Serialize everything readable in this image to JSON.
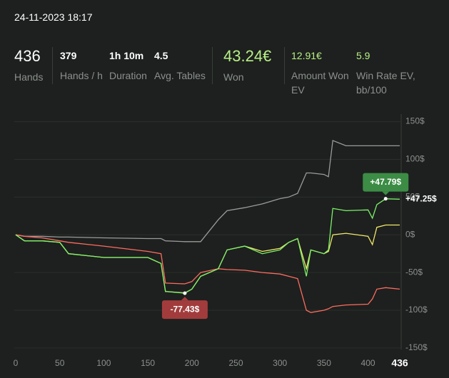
{
  "header": {
    "datetime": "24-11-2023 18:17"
  },
  "stats": [
    {
      "value": "436",
      "label": "Hands"
    },
    {
      "value": "379",
      "label": "Hands / h"
    },
    {
      "value": "1h 10m",
      "label": "Duration"
    },
    {
      "value": "4.5",
      "label": "Avg. Tables"
    },
    {
      "value": "43.24€",
      "label": "Won"
    },
    {
      "value": "12.91€",
      "label": "Amount Won EV"
    },
    {
      "value": "5.9",
      "label": "Win Rate EV, bb/100"
    }
  ],
  "chart_data": {
    "type": "line",
    "x": [
      0,
      10,
      30,
      50,
      60,
      100,
      150,
      165,
      170,
      192,
      200,
      210,
      230,
      240,
      260,
      280,
      300,
      310,
      320,
      330,
      335,
      350,
      355,
      360,
      375,
      400,
      405,
      410,
      420,
      436
    ],
    "series": [
      {
        "color": "#9a9a9a",
        "values": [
          0,
          -2,
          -2,
          -3,
          -3,
          -4,
          -5,
          -5,
          -8,
          -9,
          -9,
          -9,
          20,
          32,
          36,
          41,
          48,
          50,
          55,
          82,
          82,
          80,
          77,
          125,
          118,
          118,
          118,
          118,
          118,
          118
        ]
      },
      {
        "color": "#ff6b60",
        "values": [
          0,
          -2,
          -4,
          -8,
          -10,
          -15,
          -22,
          -25,
          -64,
          -65,
          -62,
          -50,
          -45,
          -46,
          -47,
          -50,
          -52,
          -55,
          -58,
          -100,
          -103,
          -100,
          -98,
          -95,
          -93,
          -92,
          -85,
          -72,
          -70,
          -72
        ]
      },
      {
        "color": "#f2e86a",
        "values": [
          0,
          -8,
          -8,
          -10,
          -25,
          -30,
          -30,
          -38,
          -75,
          -77,
          -72,
          -55,
          -45,
          -20,
          -15,
          -22,
          -18,
          -10,
          -5,
          -45,
          -20,
          -25,
          -22,
          0,
          2,
          -2,
          -13,
          10,
          13,
          13
        ]
      },
      {
        "color": "#7cf06a",
        "values": [
          0,
          -8,
          -8,
          -10,
          -25,
          -30,
          -30,
          -38,
          -75,
          -77.43,
          -72,
          -55,
          -45,
          -20,
          -15,
          -25,
          -20,
          -10,
          -5,
          -55,
          -20,
          -25,
          -20,
          35,
          32,
          33,
          22,
          40,
          47.79,
          47.25
        ]
      }
    ],
    "xlim": [
      0,
      436
    ],
    "ylim": [
      -152,
      160
    ],
    "xticks": [
      0,
      50,
      100,
      150,
      200,
      250,
      300,
      350,
      400,
      436
    ],
    "yticks": [
      {
        "value": 150,
        "label": "150$"
      },
      {
        "value": 100,
        "label": "100$"
      },
      {
        "value": 50,
        "label": "50$"
      },
      {
        "value": 0,
        "label": "0$"
      },
      {
        "value": -50,
        "label": "-50$"
      },
      {
        "value": -100,
        "label": "-100$"
      },
      {
        "value": -150,
        "label": "-150$"
      }
    ],
    "grid": true,
    "annotations": [
      {
        "x": 192,
        "value": -77.43,
        "label": "-77.43$",
        "color": "#a23c3c"
      },
      {
        "x": 420,
        "value": 47.79,
        "label": "+47.79$",
        "color": "#3c8c45"
      }
    ],
    "end_label": {
      "value": 47.25,
      "label": "+47.25$"
    }
  }
}
